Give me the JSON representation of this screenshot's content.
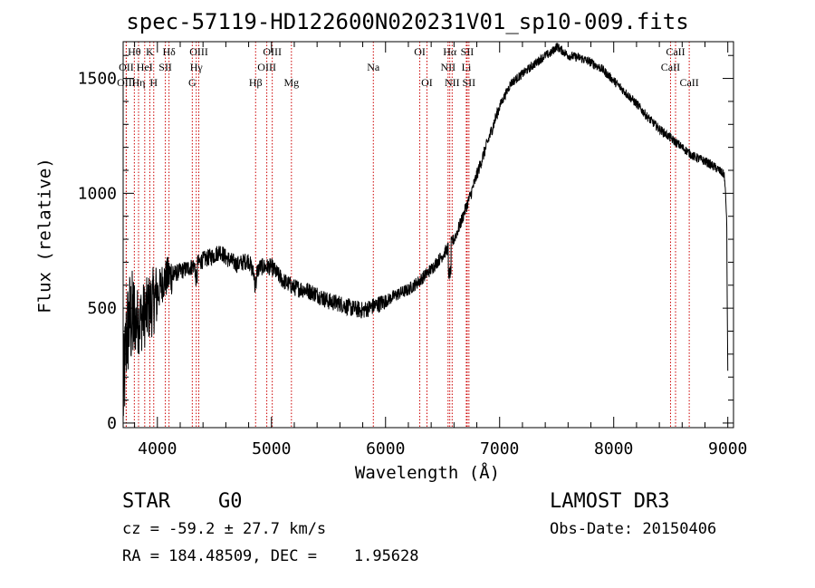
{
  "chart_data": {
    "type": "line",
    "title": "spec-57119-HD122600N020231V01_sp10-009.fits",
    "xlabel": "Wavelength (Å)",
    "ylabel": "Flux (relative)",
    "xlim": [
      3700,
      9050
    ],
    "ylim": [
      -20,
      1660
    ],
    "xticks": [
      4000,
      5000,
      6000,
      7000,
      8000,
      9000
    ],
    "yticks": [
      0,
      500,
      1000,
      1500
    ],
    "line_color": "#000000",
    "marker_color": "#cc0000",
    "spectrum_anchors": {
      "x": [
        3700,
        3730,
        3760,
        3800,
        3850,
        3900,
        3950,
        4000,
        4050,
        4100,
        4150,
        4200,
        4300,
        4400,
        4500,
        4550,
        4600,
        4700,
        4800,
        4850,
        4900,
        5000,
        5100,
        5200,
        5300,
        5400,
        5500,
        5600,
        5700,
        5800,
        5900,
        6000,
        6100,
        6200,
        6300,
        6400,
        6500,
        6560,
        6600,
        6650,
        6700,
        6750,
        6800,
        6900,
        7000,
        7100,
        7200,
        7300,
        7400,
        7450,
        7500,
        7600,
        7700,
        7800,
        7900,
        8000,
        8100,
        8200,
        8300,
        8400,
        8500,
        8600,
        8700,
        8800,
        8900,
        8970,
        8990,
        9000
      ],
      "y": [
        100,
        380,
        450,
        440,
        450,
        480,
        520,
        560,
        620,
        640,
        650,
        660,
        680,
        710,
        730,
        750,
        720,
        690,
        710,
        640,
        680,
        680,
        620,
        590,
        580,
        560,
        530,
        520,
        500,
        490,
        510,
        530,
        560,
        580,
        620,
        670,
        730,
        770,
        800,
        860,
        930,
        1000,
        1080,
        1230,
        1380,
        1480,
        1520,
        1560,
        1600,
        1610,
        1640,
        1600,
        1590,
        1570,
        1540,
        1490,
        1440,
        1390,
        1330,
        1280,
        1240,
        1200,
        1160,
        1140,
        1110,
        1080,
        900,
        200
      ]
    },
    "lines": [
      {
        "name": "Hθ",
        "x": 3798,
        "row": 0
      },
      {
        "name": "OII",
        "x": 3727,
        "row": 1
      },
      {
        "name": "OIII",
        "x": 3727,
        "row": 2
      },
      {
        "name": "K",
        "x": 3934,
        "row": 0
      },
      {
        "name": "HeI",
        "x": 3889,
        "row": 1
      },
      {
        "name": "Hη",
        "x": 3835,
        "row": 2
      },
      {
        "name": "SII",
        "x": 4070,
        "row": 1
      },
      {
        "name": "H",
        "x": 3968,
        "row": 2
      },
      {
        "name": "Hδ",
        "x": 4102,
        "row": 0
      },
      {
        "name": "OIII",
        "x": 4363,
        "row": 0
      },
      {
        "name": "Hγ",
        "x": 4341,
        "row": 1
      },
      {
        "name": "G",
        "x": 4306,
        "row": 2
      },
      {
        "name": "Hβ",
        "x": 4861,
        "row": 2
      },
      {
        "name": "OIII",
        "x": 5007,
        "row": 0
      },
      {
        "name": "OIII",
        "x": 4959,
        "row": 1
      },
      {
        "name": "Mg",
        "x": 5175,
        "row": 2
      },
      {
        "name": "Na",
        "x": 5893,
        "row": 1
      },
      {
        "name": "OI",
        "x": 6300,
        "row": 0
      },
      {
        "name": "OI",
        "x": 6363,
        "row": 2
      },
      {
        "name": "Hα",
        "x": 6563,
        "row": 0
      },
      {
        "name": "SII",
        "x": 6716,
        "row": 0
      },
      {
        "name": "NII",
        "x": 6548,
        "row": 1
      },
      {
        "name": "Li",
        "x": 6708,
        "row": 1
      },
      {
        "name": "NII",
        "x": 6584,
        "row": 2
      },
      {
        "name": "SII",
        "x": 6731,
        "row": 2
      },
      {
        "name": "CaII",
        "x": 8542,
        "row": 0
      },
      {
        "name": "CaII",
        "x": 8498,
        "row": 1
      },
      {
        "name": "CaII",
        "x": 8662,
        "row": 2
      }
    ]
  },
  "info": {
    "obj_class": "STAR",
    "subclass": "G0",
    "survey": "LAMOST DR3",
    "cz": "cz = -59.2 ± 27.7 km/s",
    "obs_date": "Obs-Date: 20150406",
    "radec": "RA = 184.48509, DEC =    1.95628"
  }
}
